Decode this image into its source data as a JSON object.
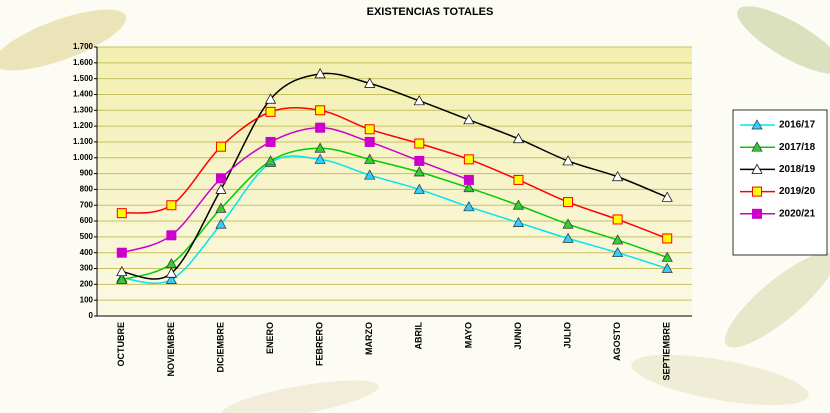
{
  "chart_data": {
    "type": "line",
    "title": "EXISTENCIAS TOTALES",
    "categories": [
      "OCTUBRE",
      "NOVIEMBRE",
      "DICIEMBRE",
      "ENERO",
      "FEBRERO",
      "MARZO",
      "ABRIL",
      "MAYO",
      "JUNIO",
      "JULIO",
      "AGOSTO",
      "SEPTIEMBRE"
    ],
    "series": [
      {
        "name": "2016/17",
        "color": "#00e5ee",
        "marker": "triangle",
        "marker_fill": "#33ccff",
        "values": [
          240,
          230,
          580,
          970,
          990,
          890,
          800,
          690,
          590,
          490,
          400,
          300
        ]
      },
      {
        "name": "2017/18",
        "color": "#00cc00",
        "marker": "triangle",
        "marker_fill": "#33cc33",
        "values": [
          230,
          330,
          680,
          980,
          1060,
          990,
          910,
          810,
          700,
          580,
          480,
          370
        ]
      },
      {
        "name": "2018/19",
        "color": "#000000",
        "marker": "triangle",
        "marker_fill": "#ffffff",
        "values": [
          280,
          270,
          800,
          1370,
          1530,
          1470,
          1360,
          1240,
          1120,
          980,
          880,
          750
        ]
      },
      {
        "name": "2019/20",
        "color": "#ff0000",
        "marker": "square",
        "marker_fill": "#ffff00",
        "values": [
          650,
          700,
          1070,
          1290,
          1300,
          1180,
          1090,
          990,
          860,
          720,
          610,
          490
        ]
      },
      {
        "name": "2020/21",
        "color": "#cc00cc",
        "marker": "square",
        "marker_fill": "#cc00cc",
        "values": [
          400,
          510,
          870,
          1100,
          1190,
          1100,
          980,
          860,
          null,
          null,
          null,
          null
        ]
      }
    ],
    "ylim": [
      0,
      1700
    ],
    "yticks": [
      0,
      100,
      200,
      300,
      400,
      500,
      600,
      700,
      800,
      900,
      {
        "value": 1000,
        "label": "1.000"
      },
      {
        "value": 1100,
        "label": "1.100"
      },
      {
        "value": 1200,
        "label": "1.200"
      },
      {
        "value": 1300,
        "label": "1.300"
      },
      {
        "value": 1400,
        "label": "1.400"
      },
      {
        "value": 1500,
        "label": "1.500"
      },
      {
        "value": 1600,
        "label": "1.600"
      },
      {
        "value": 1700,
        "label": "1.700"
      }
    ],
    "grid": true
  }
}
